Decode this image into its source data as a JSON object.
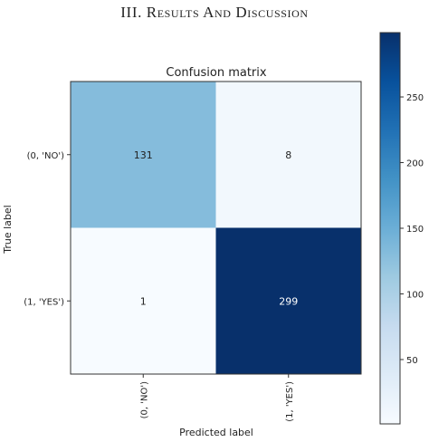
{
  "section_heading": "III. Results And Discussion",
  "chart_data": {
    "type": "heatmap",
    "title": "Confusion matrix",
    "xlabel": "Predicted label",
    "ylabel": "True label",
    "x_categories": [
      "(0, 'NO')",
      "(1, 'YES')"
    ],
    "y_categories": [
      "(0, 'NO')",
      "(1, 'YES')"
    ],
    "values": [
      [
        131,
        8
      ],
      [
        1,
        299
      ]
    ],
    "colormap": "Blues",
    "colorbar": {
      "range": [
        1,
        299
      ],
      "ticks": [
        50,
        100,
        150,
        200,
        250
      ]
    }
  }
}
